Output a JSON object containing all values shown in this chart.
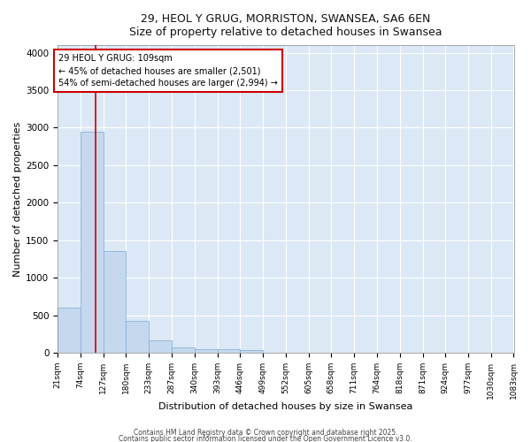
{
  "title_line1": "29, HEOL Y GRUG, MORRISTON, SWANSEA, SA6 6EN",
  "title_line2": "Size of property relative to detached houses in Swansea",
  "xlabel": "Distribution of detached houses by size in Swansea",
  "ylabel": "Number of detached properties",
  "bar_color": "#c5d8ee",
  "bar_edge_color": "#7aadd4",
  "background_color": "#dce8f5",
  "grid_color": "#ffffff",
  "vline_color": "#cc0000",
  "vline_x": 109,
  "annotation_text": "29 HEOL Y GRUG: 109sqm\n← 45% of detached houses are smaller (2,501)\n54% of semi-detached houses are larger (2,994) →",
  "annotation_box_color": "#cc0000",
  "bin_edges": [
    21,
    74,
    127,
    180,
    233,
    287,
    340,
    393,
    446,
    499,
    552,
    605,
    658,
    711,
    764,
    818,
    871,
    924,
    977,
    1030,
    1083
  ],
  "bin_heights": [
    600,
    2950,
    1350,
    430,
    160,
    75,
    50,
    50,
    40,
    0,
    0,
    0,
    0,
    0,
    0,
    0,
    0,
    0,
    0,
    0
  ],
  "ylim": [
    0,
    4100
  ],
  "yticks": [
    0,
    500,
    1000,
    1500,
    2000,
    2500,
    3000,
    3500,
    4000
  ],
  "footer_line1": "Contains HM Land Registry data © Crown copyright and database right 2025.",
  "footer_line2": "Contains public sector information licensed under the Open Government Licence v3.0."
}
